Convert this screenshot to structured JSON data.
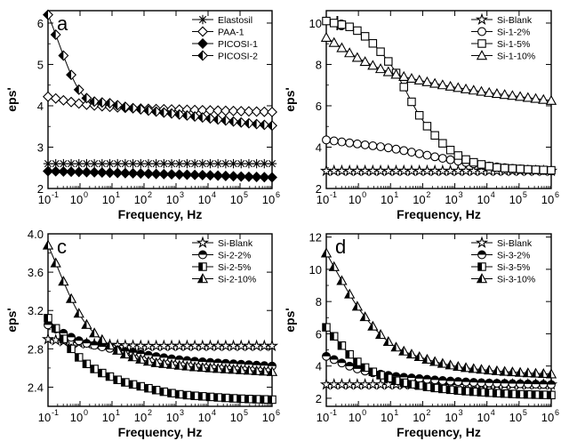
{
  "chart_data": [
    {
      "type": "line",
      "panel_label": "a",
      "xlabel": "Frequency, Hz",
      "ylabel": "eps'",
      "xscale": "log",
      "xlim": [
        0.1,
        1000000
      ],
      "ylim": [
        2,
        6.3
      ],
      "x_tick_labels": [
        "10",
        "10",
        "10",
        "10",
        "10",
        "10",
        "10",
        "10"
      ],
      "x_tick_exponents": [
        "-1",
        "0",
        "1",
        "2",
        "3",
        "4",
        "5",
        "6"
      ],
      "y_ticks": [
        2,
        3,
        4,
        5,
        6
      ],
      "y_tick_labels": [
        "2",
        "3",
        "4",
        "5",
        "6"
      ],
      "legend_position": "top-right",
      "x": [
        0.1,
        1,
        10,
        100,
        1000,
        10000,
        100000,
        1000000
      ],
      "series": [
        {
          "name": "Elastosil",
          "marker": "asterisk",
          "values": [
            2.6,
            2.6,
            2.6,
            2.6,
            2.6,
            2.6,
            2.6,
            2.6
          ]
        },
        {
          "name": "PAA-1",
          "marker": "diamond-open",
          "values": [
            4.22,
            4.05,
            3.97,
            3.93,
            3.91,
            3.89,
            3.87,
            3.85
          ]
        },
        {
          "name": "PICOSI-1",
          "marker": "diamond-filled",
          "values": [
            2.42,
            2.4,
            2.38,
            2.36,
            2.34,
            2.32,
            2.29,
            2.27
          ]
        },
        {
          "name": "PICOSI-2",
          "marker": "diamond-half",
          "values": [
            6.2,
            4.35,
            4.05,
            3.9,
            3.8,
            3.7,
            3.6,
            3.52
          ]
        }
      ]
    },
    {
      "type": "line",
      "panel_label": "b",
      "xlabel": "Frequency, Hz",
      "ylabel": "eps'",
      "xscale": "log",
      "xlim": [
        0.1,
        1000000
      ],
      "ylim": [
        2,
        10.6
      ],
      "x_tick_labels": [
        "10",
        "10",
        "10",
        "10",
        "10",
        "10",
        "10",
        "10"
      ],
      "x_tick_exponents": [
        "-1",
        "0",
        "1",
        "2",
        "3",
        "4",
        "5",
        "6"
      ],
      "y_ticks": [
        2,
        4,
        6,
        8,
        10
      ],
      "y_tick_labels": [
        "2",
        "4",
        "6",
        "8",
        "10"
      ],
      "legend_position": "top-right",
      "x": [
        0.1,
        1,
        10,
        100,
        1000,
        10000,
        100000,
        1000000
      ],
      "series": [
        {
          "name": "Si-Blank",
          "marker": "star-open",
          "values": [
            2.85,
            2.85,
            2.85,
            2.85,
            2.85,
            2.85,
            2.85,
            2.85
          ]
        },
        {
          "name": "Si-1-2%",
          "marker": "circle-open",
          "values": [
            4.35,
            4.15,
            3.95,
            3.65,
            3.35,
            3.1,
            2.95,
            2.85
          ]
        },
        {
          "name": "Si-1-5%",
          "marker": "square-open",
          "values": [
            10.1,
            9.6,
            8.0,
            5.3,
            3.7,
            3.1,
            2.95,
            2.88
          ]
        },
        {
          "name": "Si-1-10%",
          "marker": "triangle-open",
          "values": [
            9.3,
            8.3,
            7.6,
            7.2,
            6.9,
            6.65,
            6.45,
            6.25
          ]
        }
      ]
    },
    {
      "type": "line",
      "panel_label": "c",
      "xlabel": "Frequency, Hz",
      "ylabel": "eps'",
      "xscale": "log",
      "xlim": [
        0.1,
        1000000
      ],
      "ylim": [
        2.2,
        4.0
      ],
      "x_tick_labels": [
        "10",
        "10",
        "10",
        "10",
        "10",
        "10",
        "10",
        "10"
      ],
      "x_tick_exponents": [
        "-1",
        "0",
        "1",
        "2",
        "3",
        "4",
        "5",
        "6"
      ],
      "y_ticks": [
        2.4,
        2.8,
        3.2,
        3.6,
        4.0
      ],
      "y_tick_labels": [
        "2.4",
        "2.8",
        "3.2",
        "3.6",
        "4.0"
      ],
      "legend_position": "top-right",
      "x": [
        0.1,
        1,
        10,
        100,
        1000,
        10000,
        100000,
        1000000
      ],
      "series": [
        {
          "name": "Si-Blank",
          "marker": "star-open",
          "values": [
            2.9,
            2.86,
            2.84,
            2.83,
            2.83,
            2.83,
            2.83,
            2.83
          ]
        },
        {
          "name": "Si-2-2%",
          "marker": "circle-half",
          "values": [
            3.05,
            2.88,
            2.8,
            2.74,
            2.69,
            2.66,
            2.64,
            2.62
          ]
        },
        {
          "name": "Si-2-5%",
          "marker": "square-half",
          "values": [
            3.12,
            2.7,
            2.5,
            2.4,
            2.33,
            2.3,
            2.28,
            2.27
          ]
        },
        {
          "name": "Si-2-10%",
          "marker": "triangle-half",
          "values": [
            3.88,
            3.15,
            2.82,
            2.68,
            2.63,
            2.6,
            2.58,
            2.56
          ]
        }
      ]
    },
    {
      "type": "line",
      "panel_label": "d",
      "xlabel": "Frequency, Hz",
      "ylabel": "eps'",
      "xscale": "log",
      "xlim": [
        0.1,
        1000000
      ],
      "ylim": [
        1.5,
        12.2
      ],
      "x_tick_labels": [
        "10",
        "10",
        "10",
        "10",
        "10",
        "10",
        "10",
        "10"
      ],
      "x_tick_exponents": [
        "-1",
        "0",
        "1",
        "2",
        "3",
        "4",
        "5",
        "6"
      ],
      "y_ticks": [
        2,
        4,
        6,
        8,
        10,
        12
      ],
      "y_tick_labels": [
        "2",
        "4",
        "6",
        "8",
        "10",
        "12"
      ],
      "legend_position": "top-right",
      "x": [
        0.1,
        1,
        10,
        100,
        1000,
        10000,
        100000,
        1000000
      ],
      "series": [
        {
          "name": "Si-Blank",
          "marker": "star-open",
          "values": [
            2.85,
            2.85,
            2.85,
            2.85,
            2.85,
            2.85,
            2.85,
            2.85
          ]
        },
        {
          "name": "Si-3-2%",
          "marker": "circle-half",
          "values": [
            4.6,
            3.8,
            3.4,
            3.2,
            3.05,
            2.95,
            2.9,
            2.85
          ]
        },
        {
          "name": "Si-3-5%",
          "marker": "square-half",
          "values": [
            6.4,
            4.2,
            3.2,
            2.75,
            2.5,
            2.35,
            2.25,
            2.2
          ]
        },
        {
          "name": "Si-3-10%",
          "marker": "triangle-half",
          "values": [
            11.0,
            7.6,
            5.4,
            4.5,
            4.0,
            3.75,
            3.6,
            3.5
          ]
        }
      ]
    }
  ]
}
